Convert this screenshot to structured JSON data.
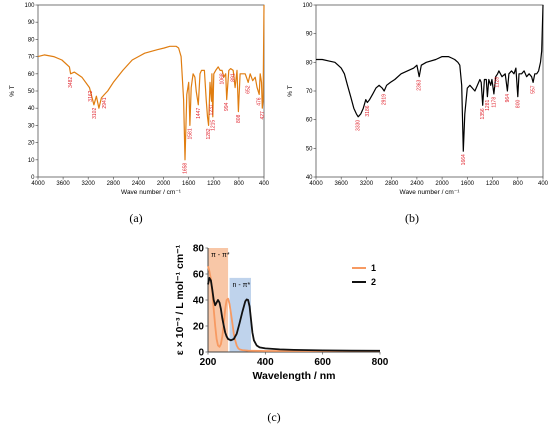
{
  "chart_data": [
    {
      "panel": "a",
      "type": "line",
      "caption": "(a)",
      "xlabel": "Wave number / cm⁻¹",
      "ylabel": "% T",
      "xlim": [
        4000,
        400
      ],
      "ylim": [
        0,
        100
      ],
      "x_ticks": [
        4000,
        3600,
        3200,
        2800,
        2400,
        2000,
        1600,
        1200,
        800,
        400
      ],
      "y_ticks": [
        0,
        10,
        20,
        30,
        40,
        50,
        60,
        70,
        80,
        90,
        100
      ],
      "color": "#e07d10",
      "series": [
        {
          "x": [
            4000,
            3900,
            3750,
            3620,
            3500,
            3480,
            3420,
            3300,
            3180,
            3110,
            3070,
            3030,
            2990,
            2941,
            2890,
            2800,
            2650,
            2500,
            2400,
            2300,
            2200,
            2100,
            1990,
            1900,
            1800,
            1760,
            1720,
            1680,
            1658,
            1630,
            1600,
            1581,
            1560,
            1530,
            1500,
            1480,
            1447,
            1420,
            1395,
            1350,
            1320,
            1300,
            1282,
            1260,
            1237,
            1230,
            1215,
            1200,
            1170,
            1130,
            1100,
            1068,
            1040,
            1010,
            994,
            960,
            930,
            891,
            860,
            830,
            808,
            780,
            740,
            700,
            680,
            652,
            620,
            580,
            540,
            510,
            476,
            460,
            440,
            427,
            415,
            400
          ],
          "y": [
            70,
            71,
            70,
            68,
            64,
            60,
            61,
            58,
            52,
            42,
            47,
            40,
            46,
            48,
            50,
            55,
            62,
            68,
            70,
            72,
            73,
            74,
            75,
            76,
            76,
            75,
            70,
            45,
            10,
            48,
            55,
            30,
            52,
            60,
            58,
            50,
            42,
            60,
            62,
            62,
            45,
            35,
            30,
            55,
            44,
            60,
            35,
            60,
            62,
            64,
            62,
            62,
            58,
            60,
            45,
            62,
            63,
            62,
            52,
            62,
            38,
            60,
            60,
            60,
            58,
            55,
            60,
            56,
            58,
            52,
            48,
            60,
            55,
            40,
            45,
            100
          ]
        }
      ],
      "annotations": [
        "3482",
        "3162",
        "3102",
        "2941",
        "1658",
        "1581",
        "1447",
        "1282",
        "1237",
        "1215",
        "1068",
        "994",
        "891",
        "808",
        "652",
        "476",
        "427"
      ]
    },
    {
      "panel": "b",
      "type": "line",
      "caption": "(b)",
      "xlabel": "Wave number / cm⁻¹",
      "ylabel": "% T",
      "xlim": [
        4000,
        400
      ],
      "ylim": [
        40,
        100
      ],
      "x_ticks": [
        4000,
        3600,
        3200,
        2800,
        2400,
        2000,
        1600,
        1200,
        800,
        400
      ],
      "y_ticks": [
        40,
        50,
        60,
        70,
        80,
        90,
        100
      ],
      "color": "#000000",
      "series": [
        {
          "x": [
            4000,
            3900,
            3800,
            3700,
            3650,
            3600,
            3550,
            3500,
            3450,
            3400,
            3360,
            3330,
            3290,
            3250,
            3210,
            3186,
            3150,
            3100,
            3050,
            3000,
            2950,
            2919,
            2880,
            2820,
            2750,
            2650,
            2550,
            2450,
            2400,
            2363,
            2330,
            2250,
            2100,
            2000,
            1900,
            1850,
            1800,
            1750,
            1720,
            1690,
            1664,
            1640,
            1600,
            1560,
            1520,
            1480,
            1440,
            1400,
            1380,
            1356,
            1330,
            1300,
            1281,
            1260,
            1230,
            1210,
            1178,
            1150,
            1120,
            1100,
            1050,
            1000,
            964,
            940,
            900,
            860,
            830,
            800,
            780,
            740,
            700,
            660,
            620,
            580,
            557,
            530,
            500,
            470,
            440,
            420,
            400
          ],
          "y": [
            81,
            81,
            80.5,
            80,
            79,
            78,
            76,
            72,
            68,
            64,
            62,
            61,
            62,
            64,
            67,
            66,
            67,
            69,
            71,
            72,
            71,
            70,
            72,
            73,
            74,
            76,
            77,
            78,
            79,
            75,
            79,
            80,
            81,
            82,
            82,
            81.5,
            81,
            80,
            79,
            72,
            49,
            62,
            71,
            72,
            71,
            70,
            72,
            74,
            73,
            65,
            74,
            74,
            68,
            74,
            72,
            74,
            69,
            75,
            76,
            77,
            75,
            76,
            70,
            76,
            77,
            76,
            78,
            68,
            76,
            76,
            77,
            75,
            76,
            75,
            73,
            76,
            76,
            77,
            80,
            84,
            100
          ]
        }
      ],
      "annotations": [
        "3330",
        "3186",
        "2919",
        "2363",
        "1664",
        "1356",
        "1281",
        "1178",
        "1128",
        "964",
        "800",
        "557"
      ]
    },
    {
      "panel": "c",
      "type": "line",
      "caption": "(c)",
      "xlabel": "Wavelength / nm",
      "ylabel": "ε × 10⁻³ / L mol⁻¹ cm⁻¹",
      "xlim": [
        200,
        800
      ],
      "ylim": [
        0,
        80
      ],
      "x_ticks": [
        200,
        400,
        600,
        800
      ],
      "y_ticks": [
        0,
        20,
        40,
        60,
        80
      ],
      "bands": [
        {
          "label": "π - π*",
          "x": [
            200,
            270
          ],
          "y_top": 80,
          "color": "#f6b48a"
        },
        {
          "label": "n - π*",
          "x": [
            275,
            350
          ],
          "y_top": 57,
          "color": "#a9c4e6"
        }
      ],
      "series": [
        {
          "name": "1",
          "color": "#f79a62",
          "x": [
            200,
            205,
            210,
            215,
            220,
            225,
            230,
            235,
            240,
            245,
            250,
            255,
            260,
            265,
            270,
            275,
            280,
            285,
            290,
            295,
            300,
            305,
            310,
            320,
            330,
            340,
            360,
            400,
            500,
            600,
            700,
            800
          ],
          "y": [
            66,
            62,
            56,
            46,
            33,
            20,
            10,
            5,
            4,
            6,
            12,
            22,
            33,
            40,
            41,
            37,
            30,
            22,
            14,
            9,
            5,
            3,
            2,
            1.5,
            1.2,
            1,
            0.9,
            0.8,
            0.8,
            0.8,
            0.8,
            0.8
          ]
        },
        {
          "name": "2",
          "color": "#111111",
          "x": [
            200,
            205,
            210,
            215,
            220,
            225,
            230,
            235,
            240,
            245,
            250,
            255,
            260,
            265,
            270,
            280,
            290,
            300,
            310,
            320,
            330,
            335,
            340,
            345,
            350,
            355,
            360,
            370,
            380,
            400,
            450,
            500,
            600,
            700,
            800
          ],
          "y": [
            52,
            57,
            55,
            48,
            40,
            36,
            38,
            40,
            38,
            33,
            26,
            20,
            15,
            12,
            10,
            9,
            10,
            14,
            22,
            31,
            39,
            40.5,
            40,
            35,
            25,
            15,
            9,
            5,
            3.5,
            2.8,
            2,
            1.6,
            1.2,
            1,
            0.9
          ]
        }
      ]
    }
  ]
}
